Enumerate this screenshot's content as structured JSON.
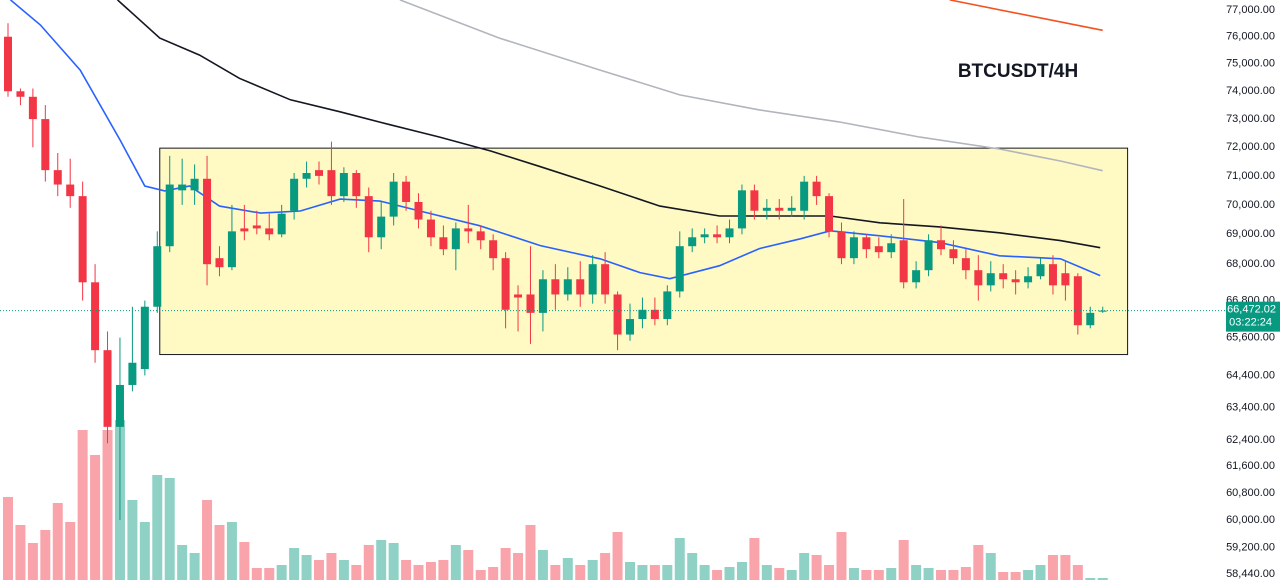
{
  "chart_data": {
    "type": "candlestick",
    "title": "BTCUSDT/4H",
    "log": true,
    "grid": false,
    "ylim": [
      58155,
      77377
    ],
    "yticks": [
      {
        "value": 77000,
        "label": "77,000.00"
      },
      {
        "value": 76000,
        "label": "76,000.00"
      },
      {
        "value": 75000,
        "label": "75,000.00"
      },
      {
        "value": 74000,
        "label": "74,000.00"
      },
      {
        "value": 73000,
        "label": "73,000.00"
      },
      {
        "value": 72000,
        "label": "72,000.00"
      },
      {
        "value": 71000,
        "label": "71,000.00"
      },
      {
        "value": 70000,
        "label": "70,000.00"
      },
      {
        "value": 69000,
        "label": "69,000.00"
      },
      {
        "value": 68000,
        "label": "68,000.00"
      },
      {
        "value": 66800,
        "label": "66,800.00"
      },
      {
        "value": 65600,
        "label": "65,600.00"
      },
      {
        "value": 64400,
        "label": "64,400.00"
      },
      {
        "value": 63400,
        "label": "63,400.00"
      },
      {
        "value": 62400,
        "label": "62,400.00"
      },
      {
        "value": 61600,
        "label": "61,600.00"
      },
      {
        "value": 60800,
        "label": "60,800.00"
      },
      {
        "value": 60000,
        "label": "60,000.00"
      },
      {
        "value": 59200,
        "label": "59,200.00"
      },
      {
        "value": 58440,
        "label": "58,440.00"
      }
    ],
    "up_color": "#089981",
    "down_color": "#f23645",
    "open": [
      76000,
      74000,
      73800,
      73000,
      71200,
      70700,
      70300,
      67400,
      65200,
      62800,
      64100,
      64600,
      66600,
      68600,
      70500,
      70500,
      70900,
      68200,
      67900,
      69200,
      69300,
      69200,
      69000,
      69800,
      70900,
      71200,
      71200,
      70300,
      71100,
      70300,
      68900,
      69600,
      70800,
      70100,
      69500,
      68900,
      68500,
      69200,
      69100,
      68800,
      68200,
      67000,
      67000,
      66400,
      67500,
      67000,
      67500,
      67000,
      68000,
      67000,
      65700,
      66200,
      66500,
      66200,
      67100,
      68600,
      68900,
      69000,
      68900,
      69200,
      70500,
      69800,
      69900,
      69800,
      69800,
      70800,
      70300,
      69100,
      68200,
      68900,
      68600,
      68400,
      68800,
      67400,
      67800,
      68800,
      68500,
      68200,
      67800,
      67300,
      67700,
      67500,
      67400,
      67600,
      68000,
      67700,
      67600,
      66000,
      66450
    ],
    "high": [
      76500,
      74100,
      74100,
      73500,
      71800,
      71600,
      70800,
      68000,
      65800,
      65600,
      66600,
      66800,
      69100,
      71700,
      71600,
      71400,
      71700,
      68600,
      70000,
      70000,
      69800,
      69700,
      70000,
      71100,
      71500,
      71500,
      72200,
      71300,
      71200,
      70600,
      70100,
      71100,
      71000,
      70400,
      69800,
      69300,
      69400,
      70000,
      69300,
      69000,
      68400,
      67300,
      68600,
      67800,
      68000,
      67900,
      68100,
      68300,
      68400,
      67100,
      66700,
      66900,
      66900,
      67300,
      69100,
      69200,
      69200,
      69300,
      69500,
      70700,
      70700,
      70200,
      70200,
      70300,
      71000,
      71000,
      70400,
      69400,
      69100,
      69000,
      68900,
      69000,
      70200,
      68100,
      69000,
      69300,
      68800,
      68500,
      68300,
      68100,
      68000,
      67800,
      67900,
      68200,
      68300,
      68100,
      67700,
      66600,
      66600
    ],
    "low": [
      73800,
      73500,
      72000,
      70800,
      70300,
      69900,
      66800,
      64800,
      62300,
      60000,
      63900,
      64400,
      66400,
      68400,
      70000,
      70000,
      67300,
      67600,
      67800,
      68800,
      69000,
      68800,
      68900,
      69500,
      70600,
      70700,
      70000,
      70100,
      69900,
      68400,
      68500,
      69300,
      69800,
      69200,
      68600,
      68300,
      67800,
      68700,
      68500,
      67800,
      65900,
      65800,
      65400,
      65800,
      66500,
      66800,
      66600,
      66700,
      66700,
      65200,
      65500,
      65900,
      66000,
      66000,
      66900,
      68400,
      68700,
      68700,
      68700,
      69000,
      69500,
      69500,
      69500,
      69600,
      69500,
      70000,
      68900,
      68000,
      68000,
      68200,
      68200,
      68200,
      67200,
      67200,
      67600,
      68300,
      68000,
      67500,
      66800,
      67100,
      67200,
      67000,
      67200,
      67500,
      67000,
      66800,
      65700,
      65900,
      66400
    ],
    "close": [
      74000,
      73800,
      73000,
      71200,
      70700,
      70300,
      67400,
      65200,
      62800,
      64100,
      64800,
      66600,
      68600,
      70700,
      70700,
      70900,
      68000,
      67900,
      69100,
      69100,
      69200,
      69000,
      69700,
      70900,
      71100,
      71000,
      70300,
      71100,
      70300,
      68900,
      69600,
      70800,
      70100,
      69500,
      68900,
      68500,
      69200,
      69100,
      68800,
      68200,
      66500,
      66900,
      66400,
      67500,
      67000,
      67500,
      67000,
      68000,
      67000,
      65700,
      66200,
      66500,
      66200,
      67100,
      68600,
      68900,
      69000,
      68900,
      69200,
      70500,
      69800,
      69900,
      69800,
      69900,
      70800,
      70300,
      69100,
      68200,
      68900,
      68500,
      68400,
      68700,
      67400,
      67800,
      68800,
      68500,
      68200,
      67800,
      67300,
      67700,
      67500,
      67400,
      67600,
      68000,
      67300,
      67300,
      66000,
      66400,
      66472
    ],
    "volume": [
      83,
      55,
      37,
      50,
      77,
      58,
      150,
      125,
      150,
      160,
      80,
      58,
      105,
      102,
      35,
      27,
      80,
      55,
      58,
      38,
      12,
      12,
      15,
      32,
      25,
      20,
      27,
      20,
      15,
      35,
      40,
      37,
      20,
      15,
      18,
      20,
      35,
      30,
      10,
      13,
      32,
      27,
      55,
      30,
      15,
      22,
      15,
      20,
      27,
      48,
      18,
      15,
      15,
      15,
      42,
      27,
      15,
      10,
      13,
      18,
      42,
      15,
      12,
      10,
      27,
      25,
      15,
      48,
      12,
      10,
      10,
      12,
      40,
      15,
      12,
      10,
      10,
      13,
      35,
      27,
      8,
      8,
      10,
      15,
      25,
      25,
      15,
      2,
      2
    ],
    "series": [
      {
        "color": "#2962ff",
        "x": [
          0.2,
          2.6,
          5.8,
          9.0,
          11.0,
          12.6,
          14.6,
          17.0,
          20.3,
          23.5,
          26.7,
          29.9,
          33.1,
          37.9,
          42.8,
          47.6,
          50.8,
          53.2,
          57.2,
          60.4,
          63.7,
          66.1,
          70.1,
          74.9,
          79.7,
          84.6,
          87.8
        ],
        "values": [
          77380,
          76440,
          74770,
          72260,
          70650,
          70480,
          70650,
          69960,
          69720,
          69790,
          70200,
          70130,
          69790,
          69290,
          68620,
          68180,
          67720,
          67520,
          67950,
          68520,
          68850,
          69120,
          68950,
          68720,
          68280,
          68180,
          67620
        ]
      },
      {
        "color": "#131722",
        "x": [
          8.8,
          12.2,
          15.4,
          18.6,
          22.7,
          26.7,
          30.7,
          34.7,
          38.8,
          42.8,
          47.6,
          52.4,
          57.2,
          62.1,
          66.1,
          70.1,
          74.9,
          79.7,
          84.6,
          87.8
        ],
        "values": [
          77380,
          75950,
          75320,
          74470,
          73690,
          73260,
          72800,
          72360,
          71870,
          71320,
          70650,
          69960,
          69620,
          69620,
          69620,
          69390,
          69250,
          69050,
          68790,
          68550
        ]
      },
      {
        "color": "#b2b5be",
        "x": [
          31.5,
          39.5,
          47.6,
          54.0,
          60.4,
          66.8,
          73.3,
          79.7,
          84.6,
          88.0
        ],
        "values": [
          77380,
          75950,
          74770,
          73870,
          73330,
          72900,
          72360,
          71940,
          71520,
          71180
        ]
      },
      {
        "color": "#f4511e",
        "x": [
          75.7,
          88.0
        ],
        "values": [
          77380,
          76240
        ]
      }
    ],
    "box": {
      "x": [
        12.2,
        90.0
      ],
      "y": [
        71970,
        65060
      ],
      "color": "#fff9c4"
    },
    "last_price": 66472.02,
    "value_labels": {
      "last_price": "66,472.02"
    },
    "countdown": "03:22:24"
  }
}
